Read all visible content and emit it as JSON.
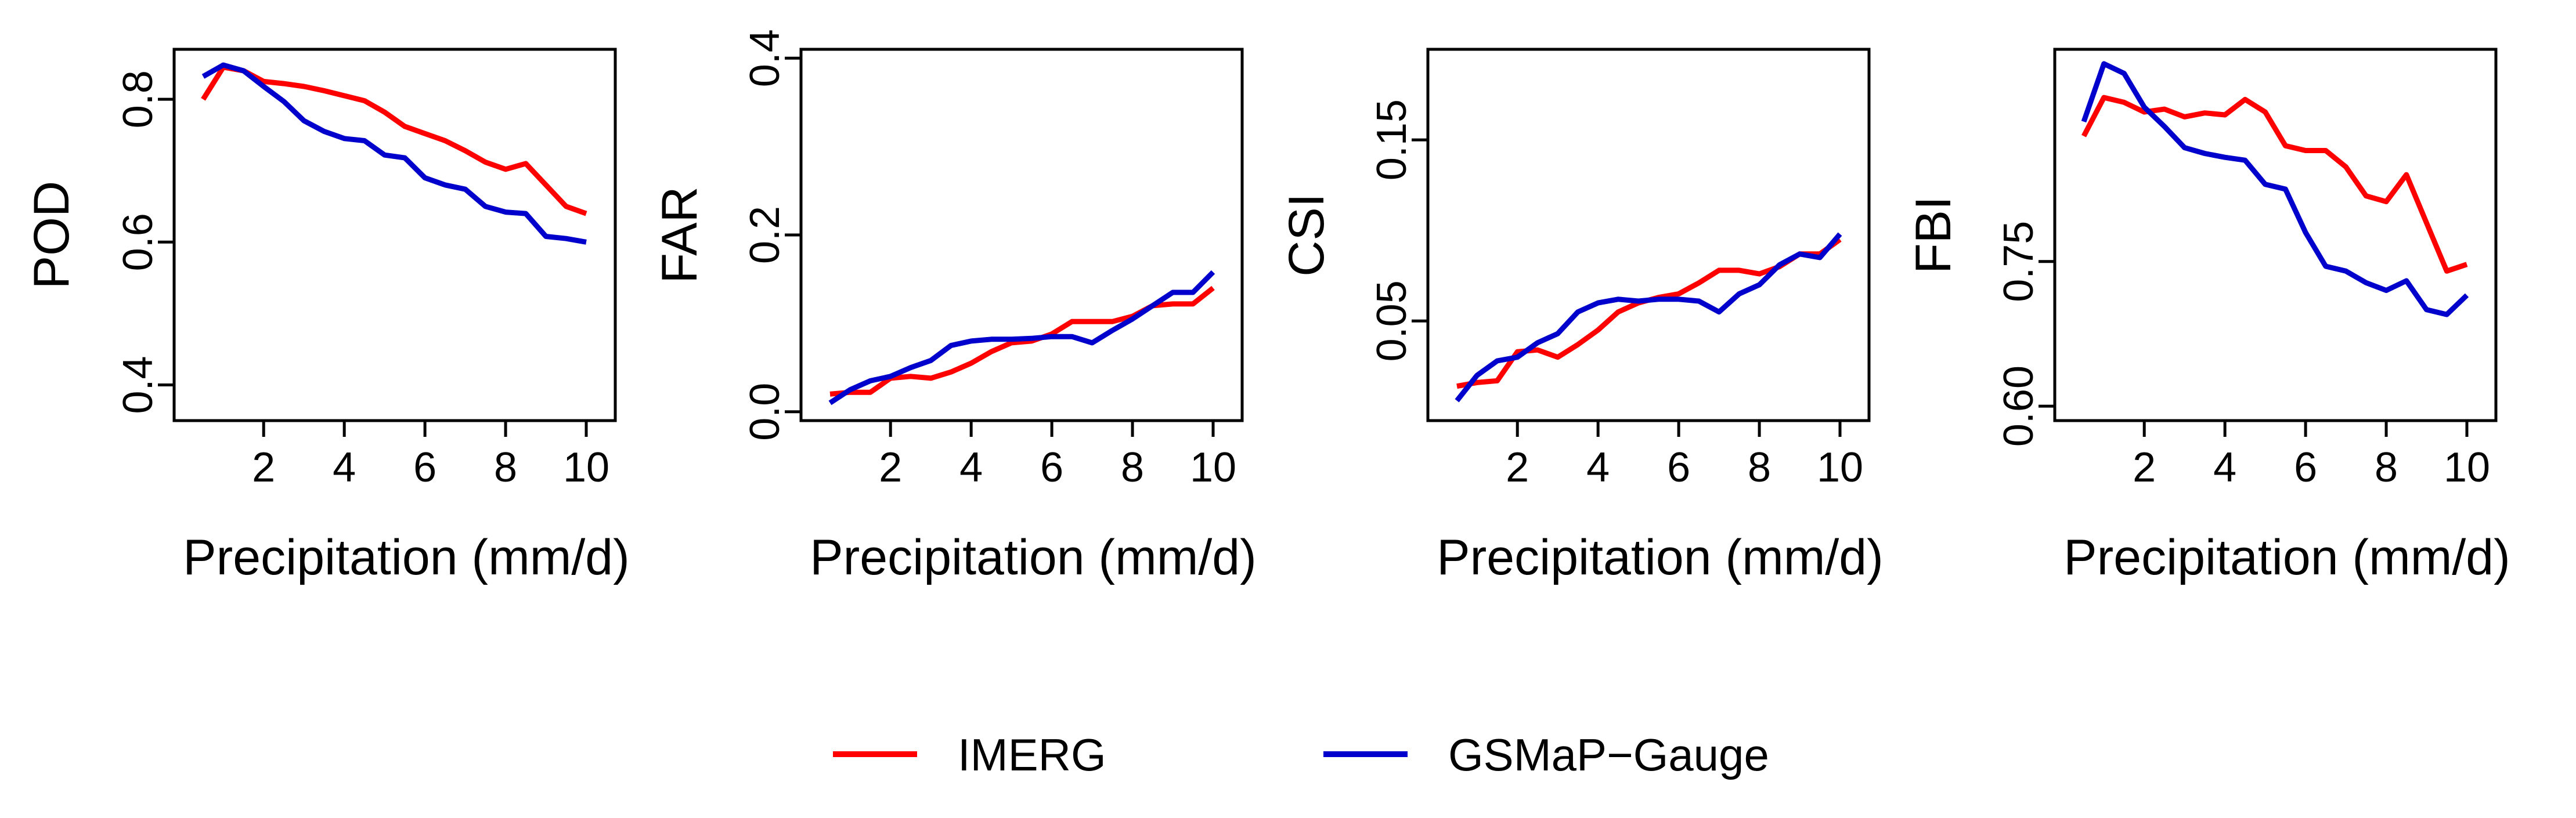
{
  "chart_data": [
    {
      "type": "line",
      "ylabel": "POD",
      "xlabel": "Precipitation (mm/d)",
      "xlim": [
        0.5,
        10
      ],
      "ylim": [
        0.35,
        0.87
      ],
      "xticks": [
        2,
        4,
        6,
        8,
        10
      ],
      "yticks": [
        0.4,
        0.6,
        0.8
      ],
      "ytick_labels": [
        "0.4",
        "0.6",
        "0.8"
      ],
      "x": [
        0.5,
        1,
        1.5,
        2,
        2.5,
        3,
        3.5,
        4,
        4.5,
        5,
        5.5,
        6,
        6.5,
        7,
        7.5,
        8,
        8.5,
        9,
        9.5,
        10
      ],
      "series": [
        {
          "name": "IMERG",
          "values": [
            0.8,
            0.845,
            0.84,
            0.825,
            0.822,
            0.818,
            0.812,
            0.805,
            0.798,
            0.782,
            0.762,
            0.752,
            0.742,
            0.728,
            0.712,
            0.702,
            0.71,
            0.68,
            0.65,
            0.64
          ]
        },
        {
          "name": "GSMaP−Gauge",
          "values": [
            0.832,
            0.848,
            0.84,
            0.818,
            0.797,
            0.77,
            0.755,
            0.745,
            0.742,
            0.722,
            0.718,
            0.69,
            0.68,
            0.674,
            0.65,
            0.642,
            0.64,
            0.608,
            0.605,
            0.6
          ]
        }
      ]
    },
    {
      "type": "line",
      "ylabel": "FAR",
      "xlabel": "Precipitation (mm/d)",
      "xlim": [
        0.5,
        10
      ],
      "ylim": [
        -0.01,
        0.41
      ],
      "xticks": [
        2,
        4,
        6,
        8,
        10
      ],
      "yticks": [
        0.0,
        0.2,
        0.4
      ],
      "ytick_labels": [
        "0.0",
        "0.2",
        "0.4"
      ],
      "x": [
        0.5,
        1,
        1.5,
        2,
        2.5,
        3,
        3.5,
        4,
        4.5,
        5,
        5.5,
        6,
        6.5,
        7,
        7.5,
        8,
        8.5,
        9,
        9.5,
        10
      ],
      "series": [
        {
          "name": "IMERG",
          "values": [
            0.02,
            0.022,
            0.022,
            0.038,
            0.04,
            0.038,
            0.045,
            0.055,
            0.068,
            0.078,
            0.08,
            0.088,
            0.102,
            0.102,
            0.102,
            0.108,
            0.12,
            0.122,
            0.122,
            0.14
          ]
        },
        {
          "name": "GSMaP−Gauge",
          "values": [
            0.01,
            0.025,
            0.035,
            0.04,
            0.05,
            0.058,
            0.075,
            0.08,
            0.082,
            0.082,
            0.083,
            0.085,
            0.085,
            0.078,
            0.092,
            0.105,
            0.12,
            0.135,
            0.135,
            0.158
          ]
        }
      ]
    },
    {
      "type": "line",
      "ylabel": "CSI",
      "xlabel": "Precipitation (mm/d)",
      "xlim": [
        0.5,
        10
      ],
      "ylim": [
        -0.005,
        0.2
      ],
      "xticks": [
        2,
        4,
        6,
        8,
        10
      ],
      "yticks": [
        0.05,
        0.15
      ],
      "ytick_labels": [
        "0.05",
        "0.15"
      ],
      "x": [
        0.5,
        1,
        1.5,
        2,
        2.5,
        3,
        3.5,
        4,
        4.5,
        5,
        5.5,
        6,
        6.5,
        7,
        7.5,
        8,
        8.5,
        9,
        9.5,
        10
      ],
      "series": [
        {
          "name": "IMERG",
          "values": [
            0.014,
            0.016,
            0.017,
            0.033,
            0.034,
            0.03,
            0.037,
            0.045,
            0.055,
            0.06,
            0.063,
            0.065,
            0.071,
            0.078,
            0.078,
            0.076,
            0.08,
            0.087,
            0.087,
            0.095
          ]
        },
        {
          "name": "GSMaP−Gauge",
          "values": [
            0.006,
            0.02,
            0.028,
            0.03,
            0.038,
            0.043,
            0.055,
            0.06,
            0.062,
            0.061,
            0.062,
            0.062,
            0.061,
            0.055,
            0.065,
            0.07,
            0.081,
            0.087,
            0.085,
            0.098
          ]
        }
      ]
    },
    {
      "type": "line",
      "ylabel": "FBI",
      "xlabel": "Precipitation (mm/d)",
      "xlim": [
        0.5,
        10
      ],
      "ylim": [
        0.585,
        0.97
      ],
      "xticks": [
        2,
        4,
        6,
        8,
        10
      ],
      "yticks": [
        0.6,
        0.75
      ],
      "ytick_labels": [
        "0.60",
        "0.75"
      ],
      "x": [
        0.5,
        1,
        1.5,
        2,
        2.5,
        3,
        3.5,
        4,
        4.5,
        5,
        5.5,
        6,
        6.5,
        7,
        7.5,
        8,
        8.5,
        9,
        9.5,
        10
      ],
      "series": [
        {
          "name": "IMERG",
          "values": [
            0.88,
            0.92,
            0.915,
            0.905,
            0.908,
            0.9,
            0.904,
            0.902,
            0.918,
            0.905,
            0.87,
            0.865,
            0.865,
            0.848,
            0.818,
            0.812,
            0.84,
            0.79,
            0.74,
            0.747
          ]
        },
        {
          "name": "GSMaP−Gauge",
          "values": [
            0.895,
            0.955,
            0.945,
            0.91,
            0.89,
            0.868,
            0.862,
            0.858,
            0.855,
            0.83,
            0.825,
            0.78,
            0.745,
            0.74,
            0.728,
            0.72,
            0.73,
            0.7,
            0.695,
            0.715
          ]
        }
      ]
    }
  ],
  "legend": {
    "placement": "bottom-center",
    "entries": [
      {
        "label": "IMERG",
        "color": "#FF0000"
      },
      {
        "label": "GSMaP−Gauge",
        "color": "#0000CC"
      }
    ]
  }
}
